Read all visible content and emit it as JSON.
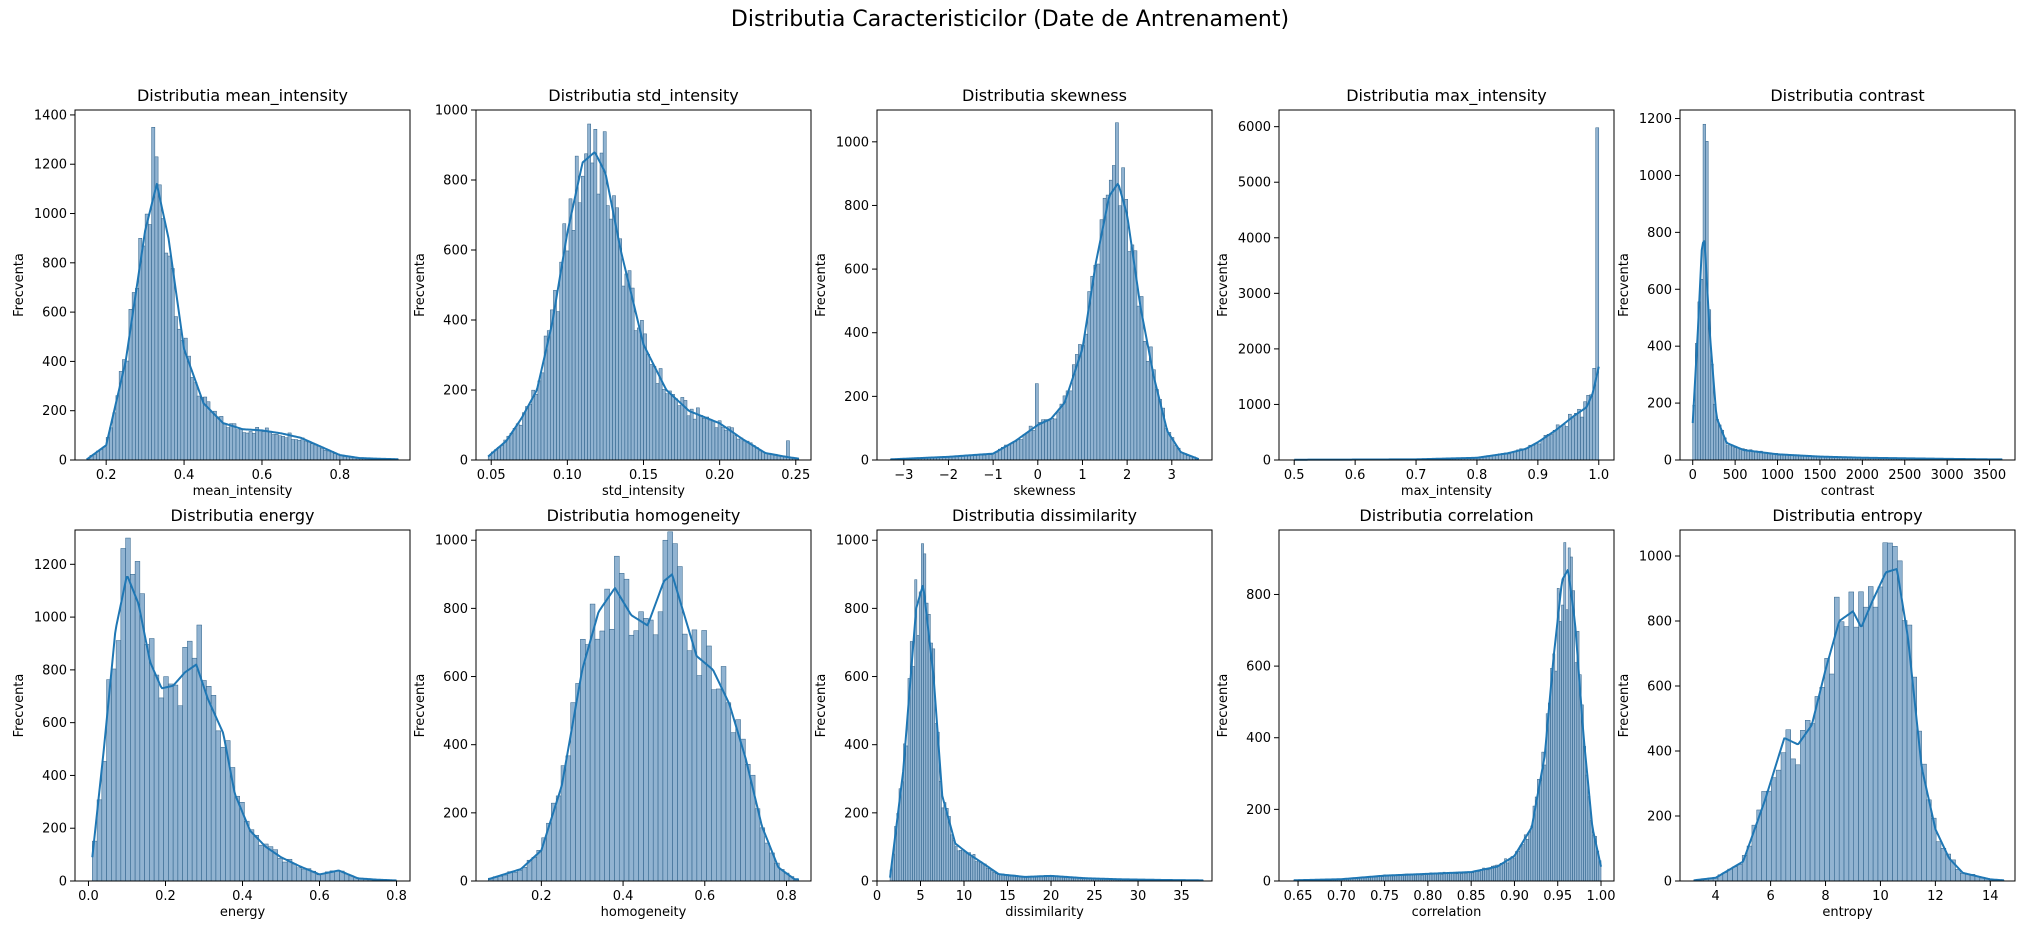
{
  "figure_title": "Distributia Caracteristicilor (Date de Antrenament)",
  "colors": {
    "bar_fill": "#7ea6c9",
    "bar_edge": "#2b5f88",
    "kde_line": "#1f77b4",
    "axis": "#000000"
  },
  "chart_data": [
    {
      "type": "histogram",
      "title": "Distributia mean_intensity",
      "xlabel": "mean_intensity",
      "ylabel": "Frecventa",
      "xlim": [
        0.12,
        0.98
      ],
      "ylim": [
        0,
        1420
      ],
      "xticks": [
        0.2,
        0.4,
        0.6,
        0.8
      ],
      "xtick_labels": [
        "0.2",
        "0.4",
        "0.6",
        "0.8"
      ],
      "yticks": [
        0,
        200,
        400,
        600,
        800,
        1000,
        1200,
        1400
      ],
      "ytick_labels": [
        "0",
        "200",
        "400",
        "600",
        "800",
        "1000",
        "1200",
        "1400"
      ],
      "range": [
        0.15,
        0.95
      ],
      "bins": 96,
      "spikes": [
        [
          0.32,
          1350
        ],
        [
          0.33,
          1230
        ]
      ],
      "kde": [
        [
          0.15,
          2
        ],
        [
          0.2,
          60
        ],
        [
          0.25,
          400
        ],
        [
          0.3,
          930
        ],
        [
          0.33,
          1120
        ],
        [
          0.36,
          900
        ],
        [
          0.4,
          450
        ],
        [
          0.45,
          230
        ],
        [
          0.5,
          150
        ],
        [
          0.55,
          125
        ],
        [
          0.6,
          120
        ],
        [
          0.65,
          108
        ],
        [
          0.7,
          90
        ],
        [
          0.75,
          55
        ],
        [
          0.8,
          20
        ],
        [
          0.85,
          8
        ],
        [
          0.9,
          5
        ],
        [
          0.95,
          3
        ]
      ]
    },
    {
      "type": "histogram",
      "title": "Distributia std_intensity",
      "xlabel": "std_intensity",
      "ylabel": "Frecventa",
      "xlim": [
        0.04,
        0.26
      ],
      "ylim": [
        0,
        1000
      ],
      "xticks": [
        0.05,
        0.1,
        0.15,
        0.2,
        0.25
      ],
      "xtick_labels": [
        "0.05",
        "0.10",
        "0.15",
        "0.20",
        "0.25"
      ],
      "yticks": [
        0,
        200,
        400,
        600,
        800,
        1000
      ],
      "ytick_labels": [
        "0",
        "200",
        "400",
        "600",
        "800",
        "1000"
      ],
      "range": [
        0.048,
        0.252
      ],
      "bins": 100,
      "spikes": [
        [
          0.115,
          960
        ],
        [
          0.118,
          945
        ],
        [
          0.245,
          55
        ]
      ],
      "kde": [
        [
          0.048,
          10
        ],
        [
          0.06,
          55
        ],
        [
          0.07,
          120
        ],
        [
          0.08,
          200
        ],
        [
          0.09,
          390
        ],
        [
          0.1,
          650
        ],
        [
          0.11,
          850
        ],
        [
          0.118,
          880
        ],
        [
          0.125,
          820
        ],
        [
          0.135,
          600
        ],
        [
          0.15,
          330
        ],
        [
          0.165,
          200
        ],
        [
          0.18,
          140
        ],
        [
          0.2,
          105
        ],
        [
          0.215,
          60
        ],
        [
          0.23,
          20
        ],
        [
          0.245,
          8
        ],
        [
          0.252,
          4
        ]
      ]
    },
    {
      "type": "histogram",
      "title": "Distributia skewness",
      "xlabel": "skewness",
      "ylabel": "Frecventa",
      "xlim": [
        -3.6,
        3.9
      ],
      "ylim": [
        0,
        1100
      ],
      "xticks": [
        -3,
        -2,
        -1,
        0,
        1,
        2,
        3
      ],
      "xtick_labels": [
        "−3",
        "−2",
        "−1",
        "0",
        "1",
        "2",
        "3"
      ],
      "yticks": [
        0,
        200,
        400,
        600,
        800,
        1000
      ],
      "ytick_labels": [
        "0",
        "200",
        "400",
        "600",
        "800",
        "1000"
      ],
      "range": [
        -3.3,
        3.6
      ],
      "bins": 100,
      "spikes": [
        [
          1.77,
          1060
        ],
        [
          0,
          240
        ]
      ],
      "kde": [
        [
          -3.3,
          2
        ],
        [
          -2,
          10
        ],
        [
          -1,
          20
        ],
        [
          -0.5,
          60
        ],
        [
          0,
          110
        ],
        [
          0.3,
          130
        ],
        [
          0.6,
          180
        ],
        [
          1,
          350
        ],
        [
          1.3,
          620
        ],
        [
          1.6,
          830
        ],
        [
          1.8,
          870
        ],
        [
          2,
          770
        ],
        [
          2.3,
          480
        ],
        [
          2.6,
          260
        ],
        [
          2.9,
          90
        ],
        [
          3.2,
          25
        ],
        [
          3.6,
          3
        ]
      ]
    },
    {
      "type": "histogram",
      "title": "Distributia max_intensity",
      "xlabel": "max_intensity",
      "ylabel": "Frecventa",
      "xlim": [
        0.475,
        1.025
      ],
      "ylim": [
        0,
        6300
      ],
      "xticks": [
        0.5,
        0.6,
        0.7,
        0.8,
        0.9,
        1.0
      ],
      "xtick_labels": [
        "0.5",
        "0.6",
        "0.7",
        "0.8",
        "0.9",
        "1.0"
      ],
      "yticks": [
        0,
        1000,
        2000,
        3000,
        4000,
        5000,
        6000
      ],
      "ytick_labels": [
        "0",
        "1000",
        "2000",
        "3000",
        "4000",
        "5000",
        "6000"
      ],
      "range": [
        0.5,
        1.0
      ],
      "bins": 100,
      "spikes": [
        [
          0.998,
          5980
        ],
        [
          0.993,
          1650
        ]
      ],
      "kde": [
        [
          0.5,
          5
        ],
        [
          0.6,
          8
        ],
        [
          0.7,
          12
        ],
        [
          0.8,
          40
        ],
        [
          0.85,
          120
        ],
        [
          0.88,
          200
        ],
        [
          0.9,
          320
        ],
        [
          0.93,
          540
        ],
        [
          0.96,
          800
        ],
        [
          0.98,
          950
        ],
        [
          0.99,
          1200
        ],
        [
          1.0,
          1680
        ]
      ]
    },
    {
      "type": "histogram",
      "title": "Distributia contrast",
      "xlabel": "contrast",
      "ylabel": "Frecventa",
      "xlim": [
        -150,
        3800
      ],
      "ylim": [
        0,
        1230
      ],
      "xticks": [
        0,
        500,
        1000,
        1500,
        2000,
        2500,
        3000,
        3500
      ],
      "xtick_labels": [
        "0",
        "500",
        "1000",
        "1500",
        "2000",
        "2500",
        "3000",
        "3500"
      ],
      "yticks": [
        0,
        200,
        400,
        600,
        800,
        1000,
        1200
      ],
      "ytick_labels": [
        "0",
        "200",
        "400",
        "600",
        "800",
        "1000",
        "1200"
      ],
      "range": [
        0,
        3650
      ],
      "bins": 120,
      "spikes": [
        [
          125,
          1180
        ],
        [
          155,
          1120
        ]
      ],
      "kde": [
        [
          0,
          130
        ],
        [
          60,
          450
        ],
        [
          110,
          760
        ],
        [
          140,
          770
        ],
        [
          200,
          450
        ],
        [
          280,
          150
        ],
        [
          400,
          60
        ],
        [
          600,
          35
        ],
        [
          1000,
          20
        ],
        [
          1500,
          12
        ],
        [
          2000,
          8
        ],
        [
          2500,
          6
        ],
        [
          3000,
          4
        ],
        [
          3600,
          2
        ]
      ]
    },
    {
      "type": "histogram",
      "title": "Distributia energy",
      "xlabel": "energy",
      "ylabel": "Frecventa",
      "xlim": [
        -0.035,
        0.835
      ],
      "ylim": [
        0,
        1330
      ],
      "xticks": [
        0.0,
        0.2,
        0.4,
        0.6,
        0.8
      ],
      "xtick_labels": [
        "0.0",
        "0.2",
        "0.4",
        "0.6",
        "0.8"
      ],
      "yticks": [
        0,
        200,
        400,
        600,
        800,
        1000,
        1200
      ],
      "ytick_labels": [
        "0",
        "200",
        "400",
        "600",
        "800",
        "1000",
        "1200"
      ],
      "range": [
        0.01,
        0.8
      ],
      "bins": 64,
      "spikes": [
        [
          0.09,
          1260
        ],
        [
          0.29,
          970
        ]
      ],
      "kde": [
        [
          0.01,
          90
        ],
        [
          0.04,
          500
        ],
        [
          0.07,
          950
        ],
        [
          0.1,
          1160
        ],
        [
          0.13,
          1050
        ],
        [
          0.16,
          830
        ],
        [
          0.19,
          730
        ],
        [
          0.22,
          740
        ],
        [
          0.25,
          790
        ],
        [
          0.28,
          820
        ],
        [
          0.31,
          690
        ],
        [
          0.35,
          560
        ],
        [
          0.38,
          330
        ],
        [
          0.42,
          190
        ],
        [
          0.46,
          130
        ],
        [
          0.5,
          90
        ],
        [
          0.55,
          55
        ],
        [
          0.6,
          25
        ],
        [
          0.65,
          40
        ],
        [
          0.7,
          10
        ],
        [
          0.75,
          5
        ],
        [
          0.8,
          2
        ]
      ]
    },
    {
      "type": "histogram",
      "title": "Distributia homogeneity",
      "xlabel": "homogeneity",
      "ylabel": "Frecventa",
      "xlim": [
        0.04,
        0.86
      ],
      "ylim": [
        0,
        1030
      ],
      "xticks": [
        0.2,
        0.4,
        0.6,
        0.8
      ],
      "xtick_labels": [
        "0.2",
        "0.4",
        "0.6",
        "0.8"
      ],
      "yticks": [
        0,
        200,
        400,
        600,
        800,
        1000
      ],
      "ytick_labels": [
        "0",
        "200",
        "400",
        "600",
        "800",
        "1000"
      ],
      "range": [
        0.07,
        0.83
      ],
      "bins": 64,
      "spikes": [
        [
          0.505,
          1000
        ],
        [
          0.53,
          990
        ]
      ],
      "kde": [
        [
          0.07,
          5
        ],
        [
          0.15,
          35
        ],
        [
          0.2,
          90
        ],
        [
          0.25,
          280
        ],
        [
          0.3,
          620
        ],
        [
          0.34,
          790
        ],
        [
          0.38,
          860
        ],
        [
          0.42,
          780
        ],
        [
          0.46,
          750
        ],
        [
          0.5,
          880
        ],
        [
          0.52,
          900
        ],
        [
          0.55,
          780
        ],
        [
          0.58,
          660
        ],
        [
          0.62,
          620
        ],
        [
          0.66,
          520
        ],
        [
          0.7,
          360
        ],
        [
          0.74,
          160
        ],
        [
          0.78,
          40
        ],
        [
          0.82,
          5
        ]
      ]
    },
    {
      "type": "histogram",
      "title": "Distributia dissimilarity",
      "xlabel": "dissimilarity",
      "ylabel": "Frecventa",
      "xlim": [
        0,
        38.5
      ],
      "ylim": [
        0,
        1030
      ],
      "xticks": [
        0,
        5,
        10,
        15,
        20,
        25,
        30,
        35
      ],
      "xtick_labels": [
        "0",
        "5",
        "10",
        "15",
        "20",
        "25",
        "30",
        "35"
      ],
      "yticks": [
        0,
        200,
        400,
        600,
        800,
        1000
      ],
      "ytick_labels": [
        "0",
        "200",
        "400",
        "600",
        "800",
        "1000"
      ],
      "range": [
        1.5,
        37.5
      ],
      "bins": 140,
      "spikes": [
        [
          5.1,
          990
        ],
        [
          5.4,
          960
        ]
      ],
      "kde": [
        [
          1.5,
          10
        ],
        [
          3,
          320
        ],
        [
          4.5,
          800
        ],
        [
          5.3,
          870
        ],
        [
          6.5,
          600
        ],
        [
          7.5,
          250
        ],
        [
          9,
          110
        ],
        [
          10.5,
          80
        ],
        [
          12,
          55
        ],
        [
          14,
          20
        ],
        [
          17,
          12
        ],
        [
          20,
          15
        ],
        [
          24,
          8
        ],
        [
          28,
          5
        ],
        [
          33,
          3
        ],
        [
          37,
          2
        ]
      ]
    },
    {
      "type": "histogram",
      "title": "Distributia correlation",
      "xlabel": "correlation",
      "ylabel": "Frecventa",
      "xlim": [
        0.628,
        1.015
      ],
      "ylim": [
        0,
        980
      ],
      "xticks": [
        0.65,
        0.7,
        0.75,
        0.8,
        0.85,
        0.9,
        0.95,
        1.0
      ],
      "xtick_labels": [
        "0.65",
        "0.70",
        "0.75",
        "0.80",
        "0.85",
        "0.90",
        "0.95",
        "1.00"
      ],
      "yticks": [
        0,
        200,
        400,
        600,
        800
      ],
      "ytick_labels": [
        "0",
        "200",
        "400",
        "600",
        "800"
      ],
      "range": [
        0.645,
        1.0
      ],
      "bins": 140,
      "spikes": [
        [
          0.957,
          945
        ],
        [
          0.962,
          930
        ]
      ],
      "kde": [
        [
          0.645,
          2
        ],
        [
          0.7,
          5
        ],
        [
          0.75,
          15
        ],
        [
          0.8,
          20
        ],
        [
          0.85,
          25
        ],
        [
          0.88,
          40
        ],
        [
          0.9,
          70
        ],
        [
          0.92,
          150
        ],
        [
          0.935,
          350
        ],
        [
          0.945,
          620
        ],
        [
          0.955,
          840
        ],
        [
          0.962,
          870
        ],
        [
          0.97,
          720
        ],
        [
          0.98,
          400
        ],
        [
          0.99,
          150
        ],
        [
          1.0,
          40
        ]
      ]
    },
    {
      "type": "histogram",
      "title": "Distributia entropy",
      "xlabel": "entropy",
      "ylabel": "Frecventa",
      "xlim": [
        2.7,
        14.9
      ],
      "ylim": [
        0,
        1080
      ],
      "xticks": [
        4,
        6,
        8,
        10,
        12,
        14
      ],
      "xtick_labels": [
        "4",
        "6",
        "8",
        "10",
        "12",
        "14"
      ],
      "yticks": [
        0,
        200,
        400,
        600,
        800,
        1000
      ],
      "ytick_labels": [
        "0",
        "200",
        "400",
        "600",
        "800",
        "1000"
      ],
      "range": [
        3.2,
        14.5
      ],
      "bins": 64,
      "spikes": [
        [
          10.35,
          1040
        ]
      ],
      "kde": [
        [
          3.2,
          2
        ],
        [
          4,
          10
        ],
        [
          5,
          60
        ],
        [
          5.8,
          250
        ],
        [
          6.5,
          440
        ],
        [
          7,
          420
        ],
        [
          7.5,
          480
        ],
        [
          8,
          650
        ],
        [
          8.5,
          800
        ],
        [
          9,
          830
        ],
        [
          9.3,
          780
        ],
        [
          9.7,
          860
        ],
        [
          10.2,
          950
        ],
        [
          10.6,
          960
        ],
        [
          11,
          750
        ],
        [
          11.5,
          350
        ],
        [
          12,
          160
        ],
        [
          12.5,
          70
        ],
        [
          13,
          25
        ],
        [
          14,
          5
        ],
        [
          14.5,
          2
        ]
      ]
    }
  ]
}
